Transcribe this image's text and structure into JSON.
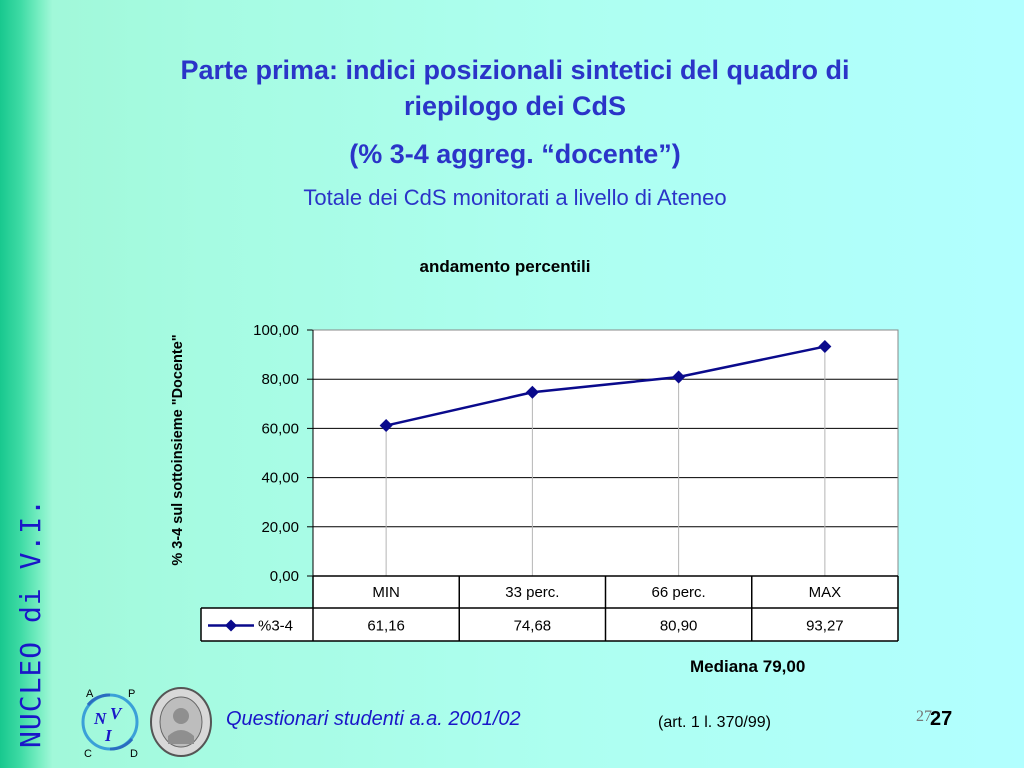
{
  "slide": {
    "title_lines": [
      "Parte prima: indici posizionali sintetici del quadro di",
      "riepilogo dei CdS",
      "(% 3-4 aggreg. “docente”)"
    ],
    "subtitle": "Totale dei CdS monitorati a livello di Ateneo",
    "vertical_label": "NUCLEO di V.I.",
    "mediana": "Mediana 79,00",
    "footer": "Questionari  studenti a.a. 2001/02",
    "footer_note": "(art. 1 l. 370/99)",
    "page_number_small": "27",
    "page_number": "27",
    "logo_letters": [
      "A",
      "P",
      "C",
      "D"
    ],
    "logo_center": [
      "N",
      "V",
      "I"
    ]
  },
  "chart_data": {
    "type": "line",
    "title": "andamento percentili",
    "ylabel": "% 3-4 sul sottoinsieme \"Docente\"",
    "categories": [
      "MIN",
      "33 perc.",
      "66 perc.",
      "MAX"
    ],
    "series": [
      {
        "name": "%3-4",
        "values": [
          61.16,
          74.68,
          80.9,
          93.27
        ]
      }
    ],
    "value_labels": [
      "61,16",
      "74,68",
      "80,90",
      "93,27"
    ],
    "ylim": [
      0,
      100
    ],
    "yticks": [
      "0,00",
      "20,00",
      "40,00",
      "60,00",
      "80,00",
      "100,00"
    ],
    "grid": true,
    "legend": "data-table",
    "color": "#0a0a8c"
  }
}
